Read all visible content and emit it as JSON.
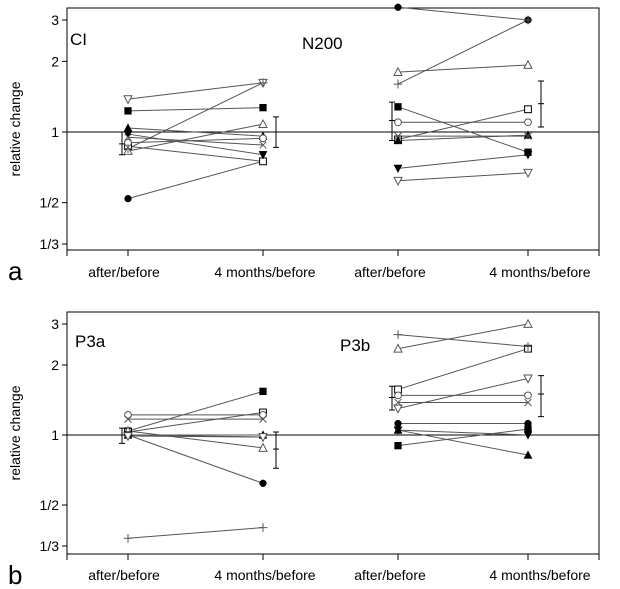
{
  "chart_data": [
    {
      "type": "scatter",
      "panel_letter": "a",
      "ylabel": "relative change",
      "y_scale": "log",
      "ylim": [
        0.31,
        3.5
      ],
      "yticks": [
        {
          "value": 0.3333,
          "label": "1/3"
        },
        {
          "value": 0.5,
          "label": "1/2"
        },
        {
          "value": 1,
          "label": "1"
        },
        {
          "value": 2,
          "label": "2"
        },
        {
          "value": 3,
          "label": "3"
        }
      ],
      "categories": [
        "after/before",
        "4 months/before",
        "after/before",
        "4 months/before"
      ],
      "groups": [
        {
          "label": "CI",
          "series": [
            {
              "marker": "circle-filled",
              "values": [
                0.52,
                0.75
              ]
            },
            {
              "marker": "square-filled",
              "values": [
                1.23,
                1.27
              ]
            },
            {
              "marker": "square-open",
              "values": [
                0.87,
                0.75
              ]
            },
            {
              "marker": "triangle-up-filled",
              "values": [
                1.04,
                0.96
              ]
            },
            {
              "marker": "triangle-up-open",
              "values": [
                0.83,
                1.08
              ]
            },
            {
              "marker": "triangle-down-filled",
              "values": [
                0.98,
                0.8
              ]
            },
            {
              "marker": "triangle-down-open",
              "values": [
                1.38,
                1.62
              ]
            },
            {
              "marker": "circle-open",
              "values": [
                0.9,
                0.94
              ]
            },
            {
              "marker": "x",
              "values": [
                0.95,
                0.88
              ]
            },
            {
              "marker": "plus",
              "values": [
                0.85,
                1.62
              ]
            }
          ],
          "errorbars": [
            {
              "center": 0.89,
              "low": 0.8,
              "high": 1.0
            },
            {
              "center": 1.0,
              "low": 0.86,
              "high": 1.16
            }
          ]
        },
        {
          "label": "N200",
          "series": [
            {
              "marker": "circle-filled",
              "values": [
                3.4,
                3.0
              ]
            },
            {
              "marker": "square-filled",
              "values": [
                1.28,
                0.82
              ]
            },
            {
              "marker": "square-open",
              "values": [
                0.93,
                1.25
              ]
            },
            {
              "marker": "triangle-up-filled",
              "values": [
                0.92,
                0.97
              ]
            },
            {
              "marker": "triangle-up-open",
              "values": [
                1.8,
                1.93
              ]
            },
            {
              "marker": "triangle-down-filled",
              "values": [
                0.7,
                0.8
              ]
            },
            {
              "marker": "triangle-down-open",
              "values": [
                0.62,
                0.67
              ]
            },
            {
              "marker": "circle-open",
              "values": [
                1.1,
                1.1
              ]
            },
            {
              "marker": "x",
              "values": [
                0.96,
                0.96
              ]
            },
            {
              "marker": "plus",
              "values": [
                1.6,
                3.0
              ]
            }
          ],
          "errorbars": [
            {
              "center": 1.12,
              "low": 0.92,
              "high": 1.34
            },
            {
              "center": 1.32,
              "low": 1.05,
              "high": 1.65
            }
          ]
        }
      ]
    },
    {
      "type": "scatter",
      "panel_letter": "b",
      "ylabel": "relative change",
      "y_scale": "log",
      "ylim": [
        0.31,
        3.5
      ],
      "yticks": [
        {
          "value": 0.3333,
          "label": "1/3"
        },
        {
          "value": 0.5,
          "label": "1/2"
        },
        {
          "value": 1,
          "label": "1"
        },
        {
          "value": 2,
          "label": "2"
        },
        {
          "value": 3,
          "label": "3"
        }
      ],
      "categories": [
        "after/before",
        "4 months/before",
        "after/before",
        "4 months/before"
      ],
      "groups": [
        {
          "label": "P3a",
          "series": [
            {
              "marker": "circle-filled",
              "values": [
                1.0,
                0.62
              ]
            },
            {
              "marker": "square-filled",
              "values": [
                1.04,
                1.54
              ]
            },
            {
              "marker": "square-open",
              "values": [
                1.03,
                1.25
              ]
            },
            {
              "marker": "triangle-up-filled",
              "values": [
                1.0,
                1.0
              ]
            },
            {
              "marker": "triangle-up-open",
              "values": [
                1.04,
                0.88
              ]
            },
            {
              "marker": "triangle-down-filled",
              "values": [
                1.0,
                0.98
              ]
            },
            {
              "marker": "triangle-down-open",
              "values": [
                0.99,
                0.98
              ]
            },
            {
              "marker": "circle-open",
              "values": [
                1.22,
                1.22
              ]
            },
            {
              "marker": "x",
              "values": [
                1.17,
                1.17
              ]
            },
            {
              "marker": "plus",
              "values": [
                0.36,
                0.4
              ]
            }
          ],
          "errorbars": [
            {
              "center": 1.0,
              "low": 0.92,
              "high": 1.07
            },
            {
              "center": 0.87,
              "low": 0.72,
              "high": 1.03
            }
          ]
        },
        {
          "label": "P3b",
          "series": [
            {
              "marker": "circle-filled",
              "values": [
                1.12,
                1.12
              ]
            },
            {
              "marker": "square-filled",
              "values": [
                0.9,
                1.06
              ]
            },
            {
              "marker": "square-open",
              "values": [
                1.57,
                2.35
              ]
            },
            {
              "marker": "triangle-up-filled",
              "values": [
                1.05,
                0.82
              ]
            },
            {
              "marker": "triangle-up-open",
              "values": [
                2.35,
                3.0
              ]
            },
            {
              "marker": "triangle-down-filled",
              "values": [
                1.05,
                1.0
              ]
            },
            {
              "marker": "triangle-down-open",
              "values": [
                1.3,
                1.75
              ]
            },
            {
              "marker": "circle-open",
              "values": [
                1.48,
                1.48
              ]
            },
            {
              "marker": "x",
              "values": [
                1.38,
                1.38
              ]
            },
            {
              "marker": "plus",
              "values": [
                2.7,
                2.4
              ]
            }
          ],
          "errorbars": [
            {
              "center": 1.45,
              "low": 1.28,
              "high": 1.62
            },
            {
              "center": 1.5,
              "low": 1.2,
              "high": 1.8
            }
          ]
        }
      ]
    }
  ]
}
